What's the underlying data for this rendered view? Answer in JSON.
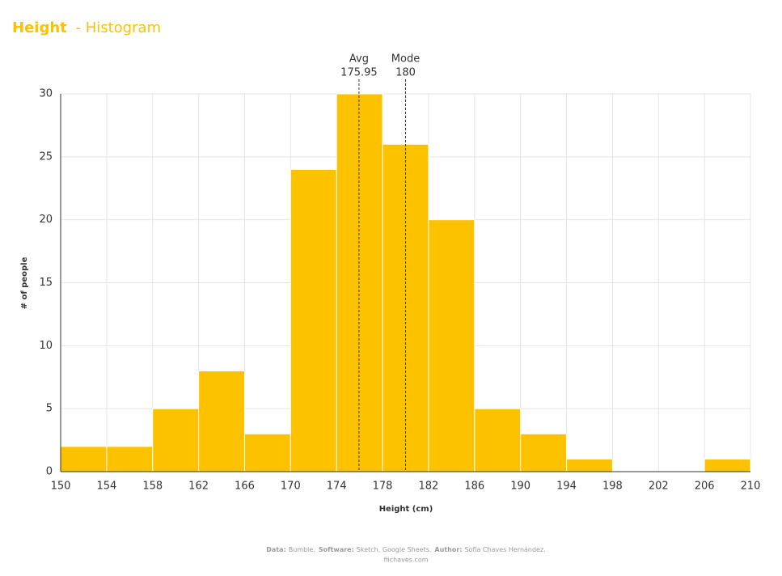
{
  "chart_data": {
    "type": "histogram",
    "title": "Height",
    "subtitle": "- Histogram",
    "x_label": "Height (cm)",
    "y_label": "# of people",
    "bins": [
      150,
      154,
      158,
      162,
      166,
      170,
      174,
      178,
      182,
      186,
      190,
      194,
      198,
      202,
      206,
      210
    ],
    "counts": [
      2,
      2,
      5,
      8,
      3,
      24,
      30,
      26,
      20,
      5,
      3,
      1,
      0,
      0,
      1
    ],
    "color": "#fcc200",
    "xlim": [
      150,
      210
    ],
    "xticks": [
      150,
      154,
      158,
      162,
      166,
      170,
      174,
      178,
      182,
      186,
      190,
      194,
      198,
      202,
      206,
      210
    ],
    "ylim": [
      0,
      30
    ],
    "yticks": [
      0,
      5,
      10,
      15,
      20,
      25,
      30
    ],
    "grid": true,
    "annotations": [
      {
        "label": "Avg",
        "value": 175.95
      },
      {
        "label": "Mode",
        "value": 180
      }
    ]
  },
  "footer": {
    "credits": [
      {
        "key": "Data:",
        "value": "Bumble."
      },
      {
        "key": "Software:",
        "value": "Sketch, Google Sheets."
      },
      {
        "key": "Author:",
        "value": "Sofía Chaves Hernández."
      }
    ],
    "url": "fiichaves.com"
  }
}
